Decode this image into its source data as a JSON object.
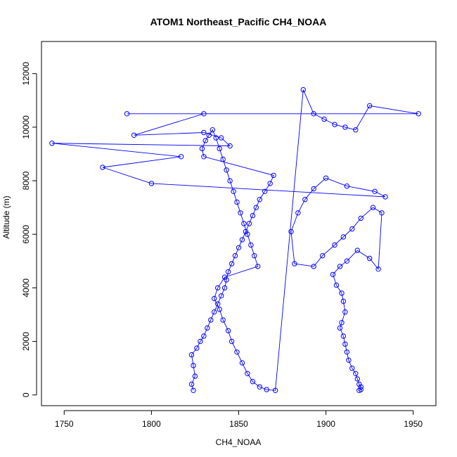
{
  "chart_data": {
    "type": "line",
    "title": "ATOM1 Northeast_Pacific CH4_NOAA",
    "xlabel": "CH4_NOAA",
    "ylabel": "Altitude (m)",
    "xlim": [
      1737,
      1963
    ],
    "ylim": [
      -400,
      13200
    ],
    "xticks": [
      1750,
      1800,
      1850,
      1900,
      1950
    ],
    "yticks": [
      0,
      2000,
      4000,
      6000,
      8000,
      10000,
      12000
    ],
    "xtick_labels": [
      "1750",
      "1800",
      "1850",
      "1900",
      "1950"
    ],
    "ytick_labels": [
      "0",
      "2000",
      "4000",
      "6000",
      "8000",
      "10000",
      "12000"
    ],
    "grid": false,
    "series_color": "#0000ff",
    "series": [
      {
        "marker": "open-circle",
        "x": [
          1824,
          1823,
          1825,
          1824,
          1823,
          1826,
          1828,
          1830,
          1832,
          1834,
          1836,
          1838,
          1840,
          1842,
          1843,
          1844,
          1846,
          1848,
          1850,
          1852,
          1854,
          1856,
          1858,
          1860,
          1862,
          1865,
          1868,
          1870,
          1830,
          1829,
          1831,
          1833,
          1835,
          1837,
          1839,
          1841,
          1843,
          1845,
          1847,
          1849,
          1851,
          1853,
          1855,
          1857,
          1859,
          1861,
          1842,
          1838,
          1836,
          1839,
          1841,
          1844,
          1846,
          1849,
          1852,
          1855,
          1858,
          1862,
          1866,
          1871,
          1887,
          1893,
          1899,
          1905,
          1911,
          1917,
          1925,
          1953,
          1786,
          1830,
          1790,
          1830,
          1840,
          1845,
          1743,
          1817,
          1772,
          1800,
          1934,
          1928,
          1912,
          1900,
          1893,
          1888,
          1884,
          1880,
          1882,
          1893,
          1898,
          1905,
          1910,
          1915,
          1920,
          1927,
          1932,
          1930,
          1925,
          1918,
          1912,
          1908,
          1904,
          1906,
          1909,
          1910,
          1911,
          1909,
          1908,
          1910,
          1911,
          1912,
          1913,
          1915,
          1917,
          1918,
          1919,
          1920,
          1920,
          1919
        ],
        "y": [
          170,
          400,
          700,
          1100,
          1500,
          1750,
          2000,
          2200,
          2500,
          2800,
          3100,
          3400,
          3700,
          4000,
          4300,
          4600,
          4900,
          5200,
          5500,
          5800,
          6100,
          6400,
          6700,
          7000,
          7300,
          7600,
          7900,
          8200,
          8900,
          9200,
          9500,
          9700,
          9900,
          9600,
          9200,
          8800,
          8400,
          8000,
          7600,
          7200,
          6800,
          6400,
          6000,
          5600,
          5200,
          4800,
          4400,
          4000,
          3600,
          3200,
          2800,
          2400,
          2000,
          1600,
          1200,
          800,
          500,
          300,
          200,
          170,
          11400,
          10500,
          10300,
          10100,
          10000,
          9900,
          10800,
          10500,
          10500,
          10500,
          9700,
          9800,
          9600,
          9300,
          9400,
          8900,
          8500,
          7900,
          7400,
          7600,
          7800,
          8100,
          7700,
          7300,
          6800,
          6100,
          4900,
          4800,
          5200,
          5600,
          5900,
          6200,
          6600,
          7000,
          6800,
          4700,
          5100,
          5400,
          5000,
          4800,
          4500,
          4100,
          3800,
          3500,
          3100,
          2700,
          2500,
          2200,
          1900,
          1600,
          1300,
          1000,
          800,
          600,
          400,
          300,
          200,
          170
        ]
      }
    ]
  }
}
